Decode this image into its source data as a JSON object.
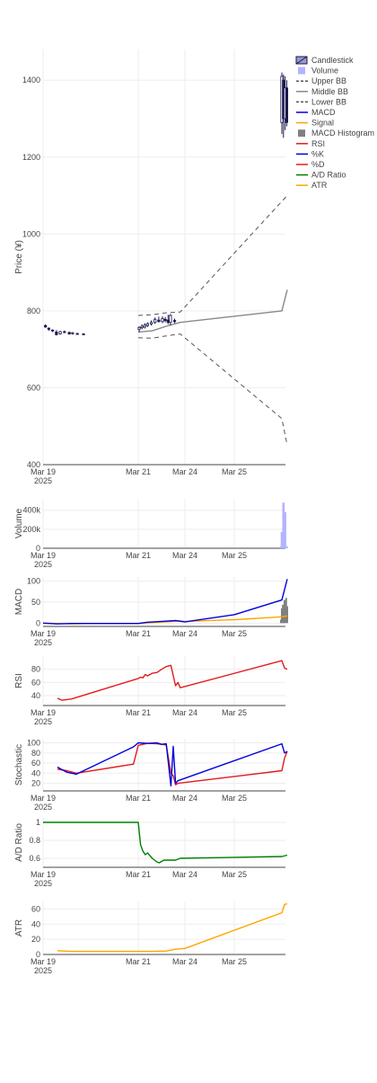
{
  "chart_data": [
    {
      "type": "candlestick",
      "panel": "price",
      "ylabel": "Price (¥)",
      "ylim": [
        400,
        1480
      ],
      "yticks": [
        "400",
        "600",
        "800",
        "1000",
        "1200",
        "1400"
      ],
      "xticks": [
        {
          "label": "Mar 19",
          "sub": "2025"
        },
        {
          "label": "Mar 21",
          "sub": ""
        },
        {
          "label": "Mar 24",
          "sub": ""
        },
        {
          "label": "Mar 25",
          "sub": ""
        }
      ],
      "candles": [
        {
          "t": 0.05,
          "o": 762,
          "h": 765,
          "l": 756,
          "c": 758
        },
        {
          "t": 0.12,
          "o": 755,
          "h": 757,
          "l": 748,
          "c": 752
        },
        {
          "t": 0.2,
          "o": 750,
          "h": 752,
          "l": 745,
          "c": 748
        },
        {
          "t": 0.28,
          "o": 745,
          "h": 750,
          "l": 736,
          "c": 738
        },
        {
          "t": 0.36,
          "o": 740,
          "h": 748,
          "l": 738,
          "c": 746
        },
        {
          "t": 0.45,
          "o": 746,
          "h": 749,
          "l": 742,
          "c": 744
        },
        {
          "t": 0.55,
          "o": 744,
          "h": 746,
          "l": 738,
          "c": 740
        },
        {
          "t": 0.62,
          "o": 742,
          "h": 745,
          "l": 738,
          "c": 743
        },
        {
          "t": 0.72,
          "o": 741,
          "h": 743,
          "l": 738,
          "c": 740
        },
        {
          "t": 0.85,
          "o": 740,
          "h": 742,
          "l": 737,
          "c": 739
        },
        {
          "t": 2.02,
          "o": 752,
          "h": 760,
          "l": 745,
          "c": 757
        },
        {
          "t": 2.08,
          "o": 756,
          "h": 765,
          "l": 752,
          "c": 760
        },
        {
          "t": 2.14,
          "o": 758,
          "h": 768,
          "l": 754,
          "c": 763
        },
        {
          "t": 2.2,
          "o": 762,
          "h": 770,
          "l": 758,
          "c": 767
        },
        {
          "t": 2.28,
          "o": 766,
          "h": 775,
          "l": 762,
          "c": 770
        },
        {
          "t": 2.36,
          "o": 770,
          "h": 783,
          "l": 766,
          "c": 778
        },
        {
          "t": 2.44,
          "o": 776,
          "h": 785,
          "l": 770,
          "c": 772
        },
        {
          "t": 2.52,
          "o": 772,
          "h": 786,
          "l": 768,
          "c": 780
        },
        {
          "t": 2.58,
          "o": 778,
          "h": 784,
          "l": 770,
          "c": 775
        },
        {
          "t": 2.64,
          "o": 776,
          "h": 790,
          "l": 765,
          "c": 770
        },
        {
          "t": 2.69,
          "o": 770,
          "h": 792,
          "l": 762,
          "c": 788
        },
        {
          "t": 2.78,
          "o": 775,
          "h": 780,
          "l": 768,
          "c": 772
        },
        {
          "t": 5.0,
          "o": 1290,
          "h": 1420,
          "l": 1260,
          "c": 1410
        },
        {
          "t": 5.03,
          "o": 1400,
          "h": 1415,
          "l": 1250,
          "c": 1300
        },
        {
          "t": 5.06,
          "o": 1300,
          "h": 1410,
          "l": 1270,
          "c": 1380
        },
        {
          "t": 5.09,
          "o": 1380,
          "h": 1400,
          "l": 1280,
          "c": 1290
        }
      ],
      "upper_bb": [
        [
          2.0,
          788
        ],
        [
          2.3,
          790
        ],
        [
          2.6,
          795
        ],
        [
          2.9,
          797
        ],
        [
          5.0,
          1085
        ],
        [
          5.1,
          1100
        ]
      ],
      "middle_bb": [
        [
          2.0,
          745
        ],
        [
          2.3,
          748
        ],
        [
          2.6,
          760
        ],
        [
          2.9,
          770
        ],
        [
          5.0,
          800
        ],
        [
          5.1,
          855
        ]
      ],
      "lower_bb": [
        [
          2.0,
          730
        ],
        [
          2.3,
          729
        ],
        [
          2.6,
          735
        ],
        [
          2.9,
          740
        ],
        [
          5.0,
          520
        ],
        [
          5.1,
          450
        ]
      ]
    },
    {
      "type": "bar",
      "panel": "volume",
      "ylabel": "Volume",
      "ylim": [
        0,
        520000
      ],
      "yticks": [
        "0",
        "200k",
        "400k"
      ],
      "bars": [
        [
          4.98,
          20000
        ],
        [
          5.0,
          170000
        ],
        [
          5.03,
          480000
        ],
        [
          5.06,
          380000
        ],
        [
          5.09,
          20000
        ]
      ]
    },
    {
      "type": "line",
      "panel": "macd",
      "ylabel": "MACD",
      "ylim": [
        -8,
        110
      ],
      "yticks": [
        "0",
        "50",
        "100"
      ],
      "macd": [
        [
          0,
          0
        ],
        [
          0.3,
          -2
        ],
        [
          0.6,
          -1
        ],
        [
          1.0,
          -1
        ],
        [
          2.0,
          -1
        ],
        [
          2.2,
          2
        ],
        [
          2.5,
          4
        ],
        [
          2.8,
          6
        ],
        [
          3.0,
          3
        ],
        [
          4.0,
          20
        ],
        [
          5.0,
          55
        ],
        [
          5.1,
          105
        ]
      ],
      "signal": [
        [
          0,
          0
        ],
        [
          0.3,
          -1
        ],
        [
          0.6,
          -2
        ],
        [
          1.0,
          -1
        ],
        [
          2.0,
          -1
        ],
        [
          2.3,
          1
        ],
        [
          2.6,
          3
        ],
        [
          2.9,
          5
        ],
        [
          3.0,
          4
        ],
        [
          4.0,
          8
        ],
        [
          5.0,
          15
        ],
        [
          5.1,
          17
        ]
      ],
      "histogram": [
        [
          4.98,
          8
        ],
        [
          5.0,
          35
        ],
        [
          5.02,
          44
        ],
        [
          5.05,
          55
        ],
        [
          5.08,
          60
        ],
        [
          5.1,
          40
        ]
      ]
    },
    {
      "type": "line",
      "panel": "rsi",
      "ylabel": "RSI",
      "ylim": [
        25,
        100
      ],
      "yticks": [
        "40",
        "60",
        "80"
      ],
      "rsi": [
        [
          0.3,
          36
        ],
        [
          0.4,
          33
        ],
        [
          0.6,
          35
        ],
        [
          2.0,
          66
        ],
        [
          2.05,
          68
        ],
        [
          2.1,
          67
        ],
        [
          2.15,
          72
        ],
        [
          2.2,
          70
        ],
        [
          2.3,
          74
        ],
        [
          2.4,
          75
        ],
        [
          2.5,
          80
        ],
        [
          2.6,
          84
        ],
        [
          2.7,
          86
        ],
        [
          2.8,
          55
        ],
        [
          2.85,
          60
        ],
        [
          2.9,
          52
        ],
        [
          5.0,
          93
        ],
        [
          5.05,
          82
        ],
        [
          5.1,
          80
        ]
      ]
    },
    {
      "type": "line",
      "panel": "stochastic",
      "ylabel": "Stochastic",
      "ylim": [
        5,
        108
      ],
      "yticks": [
        "20",
        "40",
        "60",
        "80",
        "100"
      ],
      "k": [
        [
          0.3,
          52
        ],
        [
          0.5,
          42
        ],
        [
          0.7,
          38
        ],
        [
          1.9,
          92
        ],
        [
          2.0,
          100
        ],
        [
          2.2,
          99
        ],
        [
          2.4,
          100
        ],
        [
          2.5,
          97
        ],
        [
          2.6,
          98
        ],
        [
          2.7,
          15
        ],
        [
          2.75,
          93
        ],
        [
          2.8,
          20
        ],
        [
          2.85,
          25
        ],
        [
          5.0,
          98
        ],
        [
          5.05,
          80
        ],
        [
          5.1,
          83
        ]
      ],
      "d": [
        [
          0.3,
          48
        ],
        [
          0.5,
          45
        ],
        [
          0.7,
          40
        ],
        [
          1.9,
          58
        ],
        [
          2.0,
          95
        ],
        [
          2.2,
          99
        ],
        [
          2.4,
          98
        ],
        [
          2.5,
          97
        ],
        [
          2.6,
          96
        ],
        [
          2.7,
          40
        ],
        [
          2.75,
          35
        ],
        [
          2.8,
          17
        ],
        [
          2.85,
          20
        ],
        [
          5.0,
          45
        ],
        [
          5.05,
          70
        ],
        [
          5.1,
          83
        ]
      ]
    },
    {
      "type": "line",
      "panel": "ad_ratio",
      "ylabel": "A/D Ratio",
      "ylim": [
        0.5,
        1.05
      ],
      "yticks": [
        "0.6",
        "0.8",
        "1"
      ],
      "ad": [
        [
          0,
          1.0
        ],
        [
          2.0,
          1.0
        ],
        [
          2.05,
          0.75
        ],
        [
          2.1,
          0.68
        ],
        [
          2.15,
          0.64
        ],
        [
          2.2,
          0.66
        ],
        [
          2.3,
          0.6
        ],
        [
          2.4,
          0.56
        ],
        [
          2.45,
          0.55
        ],
        [
          2.55,
          0.58
        ],
        [
          2.8,
          0.58
        ],
        [
          2.9,
          0.6
        ],
        [
          5.0,
          0.62
        ],
        [
          5.1,
          0.635
        ]
      ]
    },
    {
      "type": "line",
      "panel": "atr",
      "ylabel": "ATR",
      "ylim": [
        0,
        70
      ],
      "yticks": [
        "0",
        "20",
        "40",
        "60"
      ],
      "atr": [
        [
          0.3,
          5
        ],
        [
          0.6,
          4
        ],
        [
          2.0,
          4
        ],
        [
          2.3,
          4
        ],
        [
          2.6,
          4.5
        ],
        [
          2.8,
          7
        ],
        [
          3.0,
          8
        ],
        [
          5.0,
          55
        ],
        [
          5.05,
          66
        ],
        [
          5.1,
          67
        ]
      ]
    }
  ],
  "legend": {
    "items": [
      {
        "label": "Candlestick",
        "kind": "candle",
        "color": "#1a1a4e"
      },
      {
        "label": "Volume",
        "kind": "square",
        "color": "#b3b3ff"
      },
      {
        "label": "Upper BB",
        "kind": "dash",
        "color": "#555555"
      },
      {
        "label": "Middle BB",
        "kind": "line",
        "color": "#888888"
      },
      {
        "label": "Lower BB",
        "kind": "dash",
        "color": "#555555"
      },
      {
        "label": "MACD",
        "kind": "line",
        "color": "#0000dd"
      },
      {
        "label": "Signal",
        "kind": "line",
        "color": "#ffa500"
      },
      {
        "label": "MACD Histogram",
        "kind": "square",
        "color": "#808080"
      },
      {
        "label": "RSI",
        "kind": "line",
        "color": "#e41a1c"
      },
      {
        "label": "%K",
        "kind": "line",
        "color": "#0000dd"
      },
      {
        "label": "%D",
        "kind": "line",
        "color": "#e41a1c"
      },
      {
        "label": "A/D Ratio",
        "kind": "line",
        "color": "#008000"
      },
      {
        "label": "ATR",
        "kind": "line",
        "color": "#ffa500"
      }
    ]
  },
  "colors": {
    "candle": "#1a1a4e",
    "volume": "#b3b3ff",
    "upper_bb": "#555555",
    "middle_bb": "#888888",
    "lower_bb": "#555555",
    "macd": "#0000dd",
    "signal": "#ffa500",
    "histogram": "#808080",
    "rsi": "#e41a1c",
    "k": "#0000dd",
    "d": "#e41a1c",
    "ad": "#008000",
    "atr": "#ffa500"
  }
}
